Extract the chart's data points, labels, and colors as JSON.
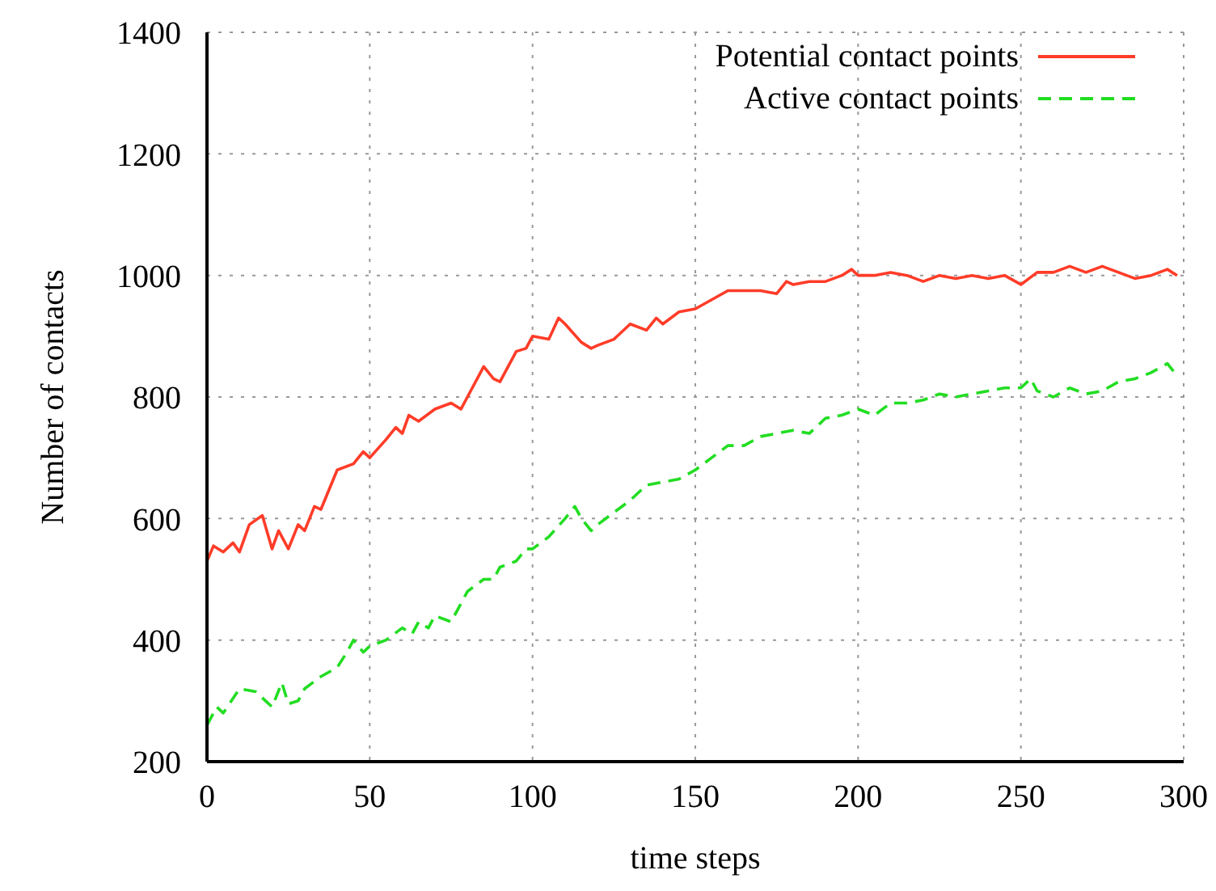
{
  "chart_data": {
    "type": "line",
    "xlabel": "time steps",
    "ylabel": "Number of contacts",
    "xlim": [
      0,
      300
    ],
    "xticks": [
      0,
      50,
      100,
      150,
      200,
      250,
      300
    ],
    "ylim": [
      200,
      1400
    ],
    "yticks": [
      200,
      400,
      600,
      800,
      1000,
      1200,
      1400
    ],
    "grid": true,
    "legend": "top right",
    "marker": "none",
    "series": [
      {
        "name": "Potential contact points",
        "color": "#ff3c28",
        "line_style": "solid",
        "x": [
          0,
          2,
          5,
          8,
          10,
          13,
          17,
          20,
          22,
          25,
          28,
          30,
          33,
          35,
          40,
          45,
          48,
          50,
          55,
          58,
          60,
          62,
          65,
          70,
          75,
          78,
          80,
          85,
          88,
          90,
          95,
          98,
          100,
          105,
          108,
          110,
          115,
          118,
          120,
          125,
          130,
          135,
          138,
          140,
          145,
          150,
          155,
          160,
          165,
          170,
          175,
          178,
          180,
          185,
          190,
          195,
          198,
          200,
          205,
          210,
          215,
          220,
          225,
          230,
          235,
          240,
          245,
          250,
          255,
          260,
          265,
          270,
          275,
          280,
          285,
          290,
          295,
          298
        ],
        "values": [
          530,
          555,
          545,
          560,
          545,
          590,
          605,
          550,
          580,
          550,
          590,
          580,
          620,
          615,
          680,
          690,
          710,
          700,
          730,
          750,
          740,
          770,
          760,
          780,
          790,
          780,
          800,
          850,
          830,
          825,
          875,
          880,
          900,
          895,
          930,
          920,
          890,
          880,
          885,
          895,
          920,
          910,
          930,
          920,
          940,
          945,
          960,
          975,
          975,
          975,
          970,
          990,
          985,
          990,
          990,
          1000,
          1010,
          1000,
          1000,
          1005,
          1000,
          990,
          1000,
          995,
          1000,
          995,
          1000,
          985,
          1005,
          1005,
          1015,
          1005,
          1015,
          1005,
          995,
          1000,
          1010,
          1000
        ]
      },
      {
        "name": "Active contact points",
        "color": "#22dd22",
        "line_style": "dashed",
        "x": [
          0,
          3,
          5,
          10,
          15,
          18,
          20,
          23,
          25,
          28,
          30,
          35,
          40,
          43,
          45,
          48,
          50,
          55,
          60,
          63,
          65,
          68,
          70,
          75,
          80,
          85,
          88,
          90,
          95,
          98,
          100,
          105,
          110,
          113,
          115,
          118,
          120,
          125,
          130,
          135,
          140,
          145,
          150,
          155,
          160,
          165,
          170,
          175,
          180,
          185,
          190,
          195,
          200,
          205,
          210,
          215,
          220,
          225,
          230,
          235,
          240,
          245,
          250,
          253,
          255,
          260,
          265,
          270,
          275,
          280,
          285,
          290,
          295,
          298
        ],
        "values": [
          260,
          290,
          280,
          320,
          315,
          300,
          290,
          330,
          295,
          300,
          320,
          340,
          355,
          380,
          400,
          380,
          390,
          400,
          420,
          410,
          430,
          420,
          440,
          430,
          480,
          500,
          500,
          520,
          530,
          550,
          550,
          570,
          600,
          620,
          600,
          580,
          590,
          610,
          630,
          655,
          660,
          665,
          680,
          700,
          720,
          720,
          735,
          740,
          745,
          740,
          765,
          770,
          780,
          770,
          790,
          790,
          795,
          805,
          800,
          805,
          810,
          815,
          815,
          830,
          810,
          800,
          815,
          805,
          810,
          825,
          830,
          840,
          855,
          835
        ]
      }
    ]
  }
}
